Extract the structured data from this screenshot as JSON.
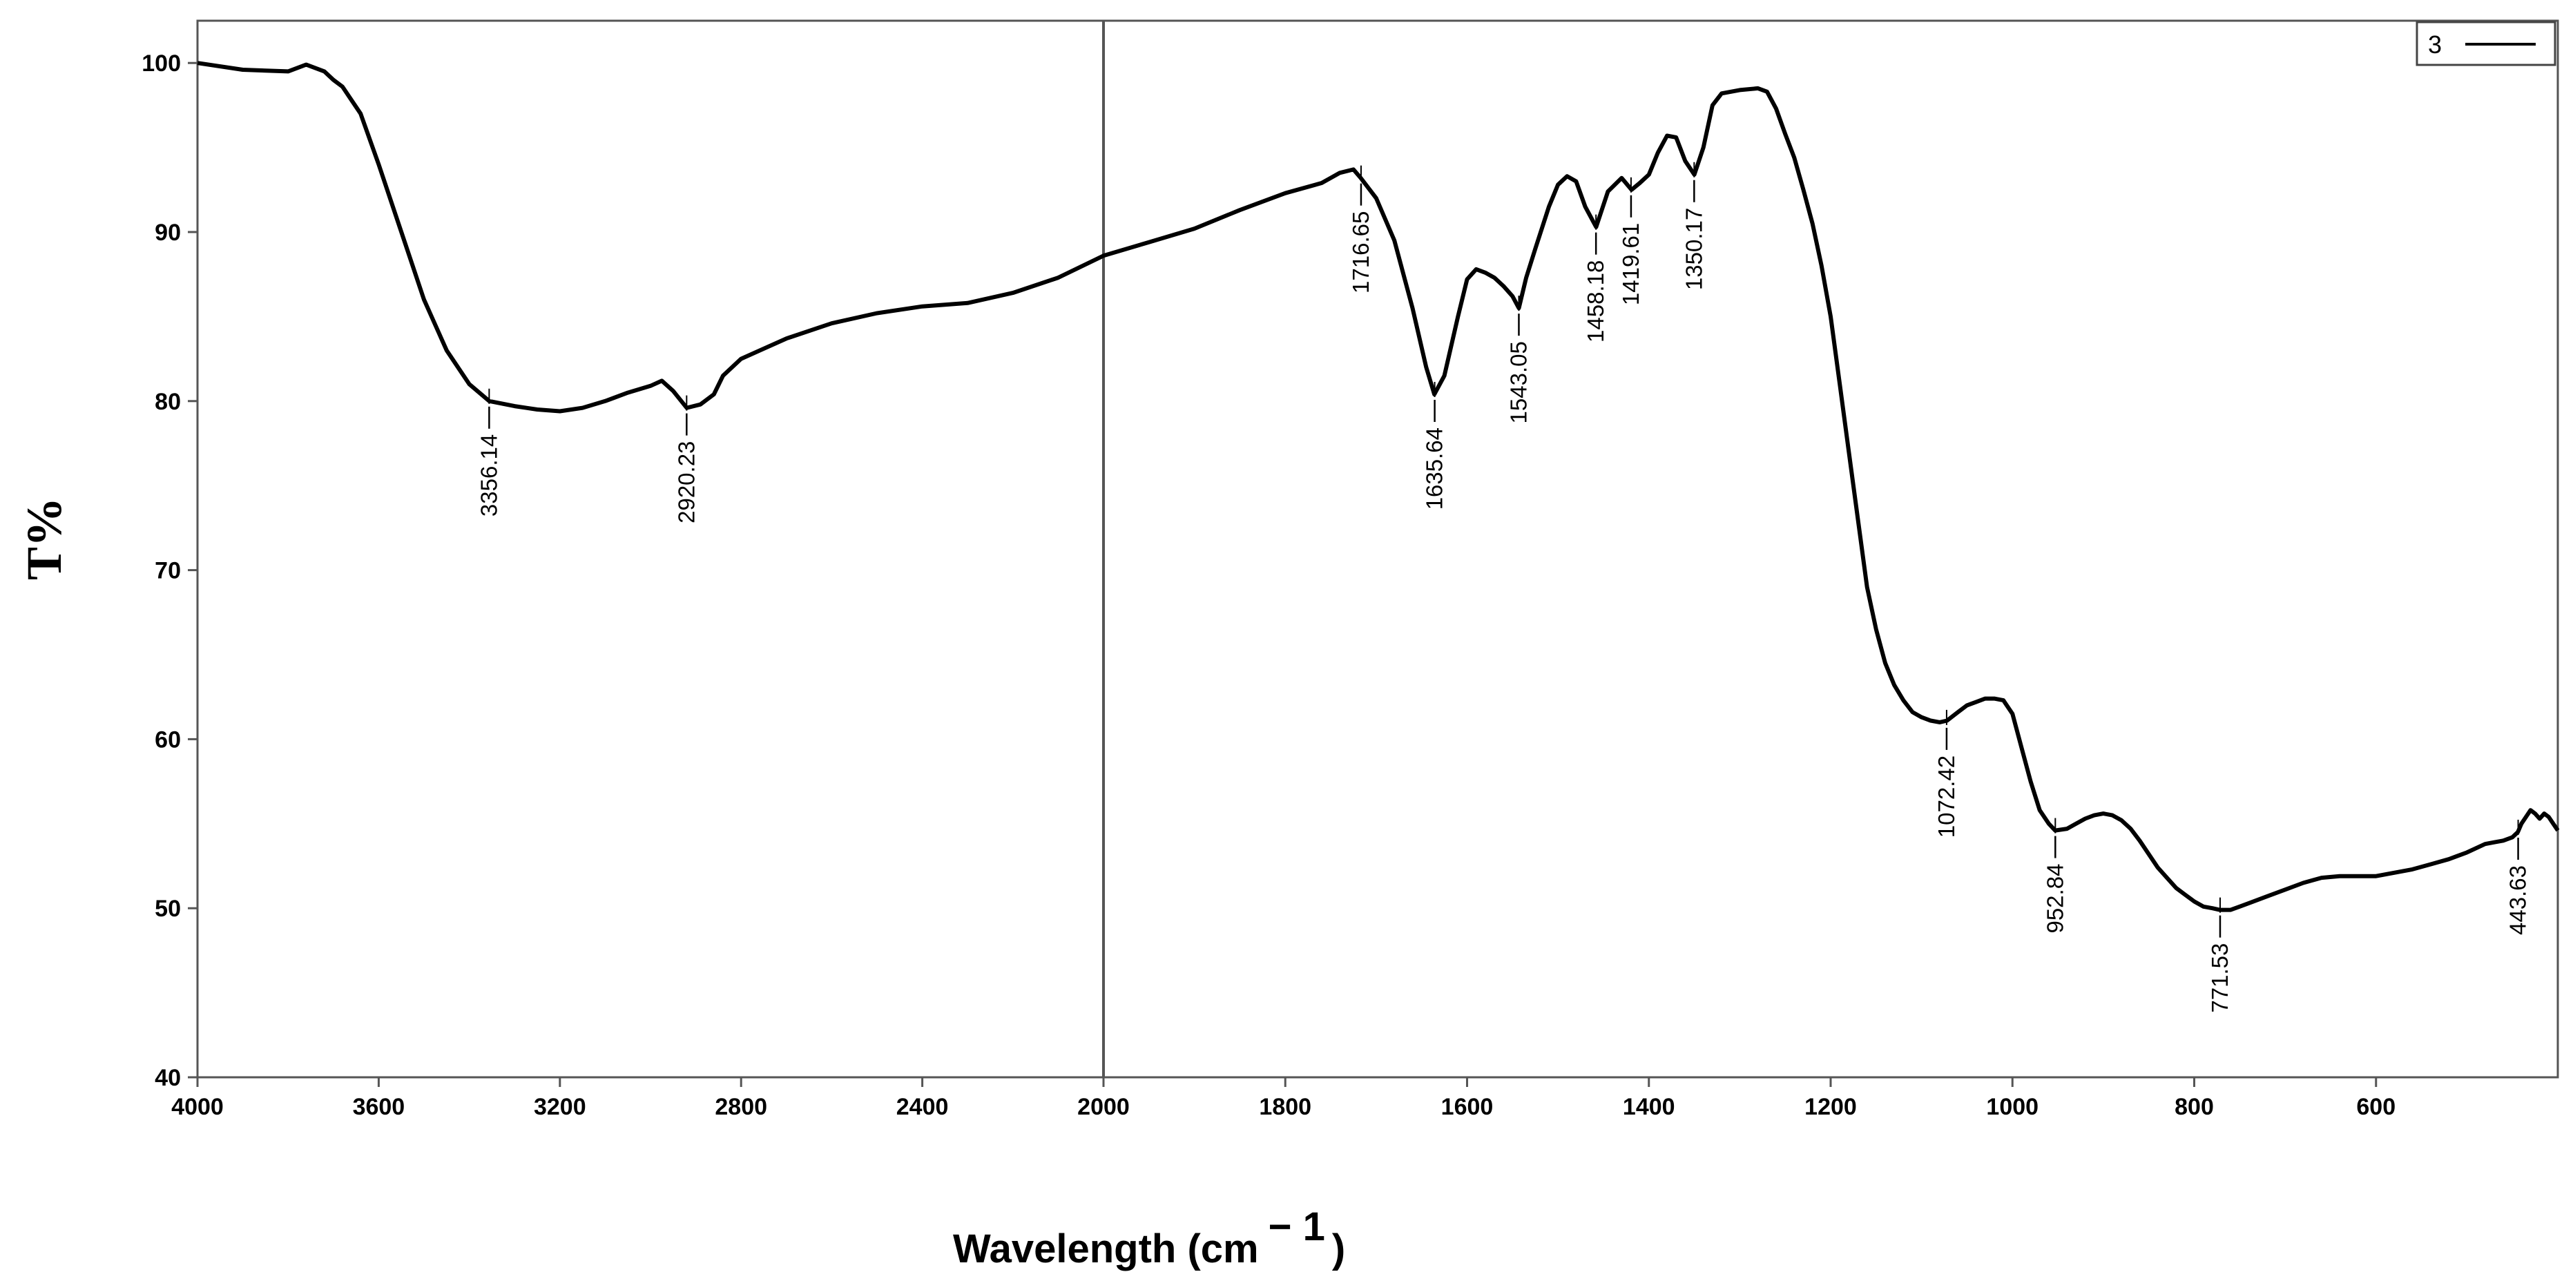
{
  "chart_data": {
    "type": "line",
    "title": "",
    "xlabel": "Wavelength (cm",
    "xlabel_sup": "− 1",
    "xlabel_close": ")",
    "ylabel": "T%",
    "xlim": [
      4000,
      400
    ],
    "ylim": [
      40,
      102.5
    ],
    "x_break": 2000,
    "x_ticks": [
      4000,
      3600,
      3200,
      2800,
      2400,
      2000,
      1800,
      1600,
      1400,
      1200,
      1000,
      800,
      600
    ],
    "y_ticks": [
      40,
      50,
      60,
      70,
      80,
      90,
      100
    ],
    "legend": {
      "label": "3",
      "position": "top-right"
    },
    "series": [
      {
        "name": "3",
        "x": [
          4000,
          3900,
          3800,
          3760,
          3720,
          3700,
          3680,
          3640,
          3600,
          3550,
          3500,
          3450,
          3400,
          3356,
          3300,
          3250,
          3200,
          3150,
          3100,
          3050,
          3000,
          2975,
          2950,
          2920,
          2890,
          2860,
          2840,
          2800,
          2700,
          2600,
          2500,
          2400,
          2300,
          2200,
          2100,
          2000,
          1950,
          1900,
          1850,
          1800,
          1760,
          1740,
          1725,
          1717,
          1700,
          1680,
          1660,
          1645,
          1636,
          1625,
          1610,
          1600,
          1590,
          1580,
          1570,
          1560,
          1550,
          1543,
          1535,
          1525,
          1510,
          1500,
          1490,
          1480,
          1470,
          1458,
          1445,
          1430,
          1419,
          1410,
          1400,
          1390,
          1380,
          1370,
          1360,
          1350,
          1340,
          1330,
          1320,
          1300,
          1280,
          1270,
          1260,
          1250,
          1240,
          1230,
          1220,
          1210,
          1200,
          1190,
          1180,
          1170,
          1160,
          1150,
          1140,
          1130,
          1120,
          1110,
          1100,
          1090,
          1080,
          1072,
          1060,
          1050,
          1040,
          1030,
          1020,
          1010,
          1000,
          990,
          980,
          970,
          960,
          953,
          940,
          930,
          920,
          910,
          900,
          890,
          880,
          870,
          860,
          850,
          840,
          830,
          820,
          810,
          800,
          790,
          780,
          772,
          760,
          750,
          740,
          720,
          700,
          680,
          660,
          640,
          620,
          600,
          580,
          560,
          540,
          520,
          500,
          480,
          470,
          460,
          450,
          444,
          440,
          435,
          430,
          425,
          420,
          415,
          410,
          405,
          400
        ],
        "values": [
          100.0,
          99.6,
          99.5,
          99.9,
          99.5,
          99.0,
          98.6,
          97.0,
          94.0,
          90.0,
          86.0,
          83.0,
          81.0,
          80.0,
          79.7,
          79.5,
          79.4,
          79.6,
          80.0,
          80.5,
          80.9,
          81.2,
          80.6,
          79.6,
          79.8,
          80.4,
          81.5,
          82.5,
          83.7,
          84.6,
          85.2,
          85.6,
          85.8,
          86.4,
          87.3,
          88.6,
          89.4,
          90.2,
          91.3,
          92.3,
          92.9,
          93.5,
          93.7,
          93.2,
          92.0,
          89.5,
          85.5,
          82.0,
          80.4,
          81.5,
          85.0,
          87.2,
          87.8,
          87.6,
          87.3,
          86.8,
          86.2,
          85.5,
          87.3,
          89.0,
          91.5,
          92.8,
          93.3,
          93.0,
          91.5,
          90.3,
          92.4,
          93.2,
          92.5,
          92.9,
          93.4,
          94.7,
          95.7,
          95.6,
          94.2,
          93.4,
          95.0,
          97.5,
          98.2,
          98.4,
          98.5,
          98.3,
          97.3,
          95.8,
          94.4,
          92.5,
          90.5,
          88.0,
          85.0,
          81.0,
          77.0,
          73.0,
          69.0,
          66.5,
          64.5,
          63.2,
          62.3,
          61.6,
          61.3,
          61.1,
          61.0,
          61.1,
          61.6,
          62.0,
          62.2,
          62.4,
          62.4,
          62.3,
          61.5,
          59.5,
          57.5,
          55.8,
          55.0,
          54.6,
          54.7,
          55.0,
          55.3,
          55.5,
          55.6,
          55.5,
          55.2,
          54.7,
          54.0,
          53.2,
          52.4,
          51.8,
          51.2,
          50.8,
          50.4,
          50.1,
          50.0,
          49.9,
          49.9,
          50.1,
          50.3,
          50.7,
          51.1,
          51.5,
          51.8,
          51.9,
          51.9,
          51.9,
          52.1,
          52.3,
          52.6,
          52.9,
          53.3,
          53.8,
          53.9,
          54.0,
          54.2,
          54.5,
          55.0,
          55.4,
          55.8,
          55.6,
          55.3,
          55.6,
          55.4,
          55.0,
          54.6
        ]
      }
    ],
    "peaks": [
      {
        "x": 3356.14,
        "label": "3356.14",
        "y": 80.0
      },
      {
        "x": 2920.23,
        "label": "2920.23",
        "y": 79.6
      },
      {
        "x": 1716.65,
        "label": "1716.65",
        "y": 93.2
      },
      {
        "x": 1635.64,
        "label": "1635.64",
        "y": 80.4
      },
      {
        "x": 1543.05,
        "label": "1543.05",
        "y": 85.5
      },
      {
        "x": 1458.18,
        "label": "1458.18",
        "y": 90.3
      },
      {
        "x": 1419.61,
        "label": "1419.61",
        "y": 92.5
      },
      {
        "x": 1350.17,
        "label": "1350.17",
        "y": 93.4
      },
      {
        "x": 1072.42,
        "label": "1072.42",
        "y": 61.0
      },
      {
        "x": 952.84,
        "label": "952.84",
        "y": 54.6
      },
      {
        "x": 771.53,
        "label": "771.53",
        "y": 49.9
      },
      {
        "x": 443.63,
        "label": "443.63",
        "y": 54.5
      }
    ]
  }
}
